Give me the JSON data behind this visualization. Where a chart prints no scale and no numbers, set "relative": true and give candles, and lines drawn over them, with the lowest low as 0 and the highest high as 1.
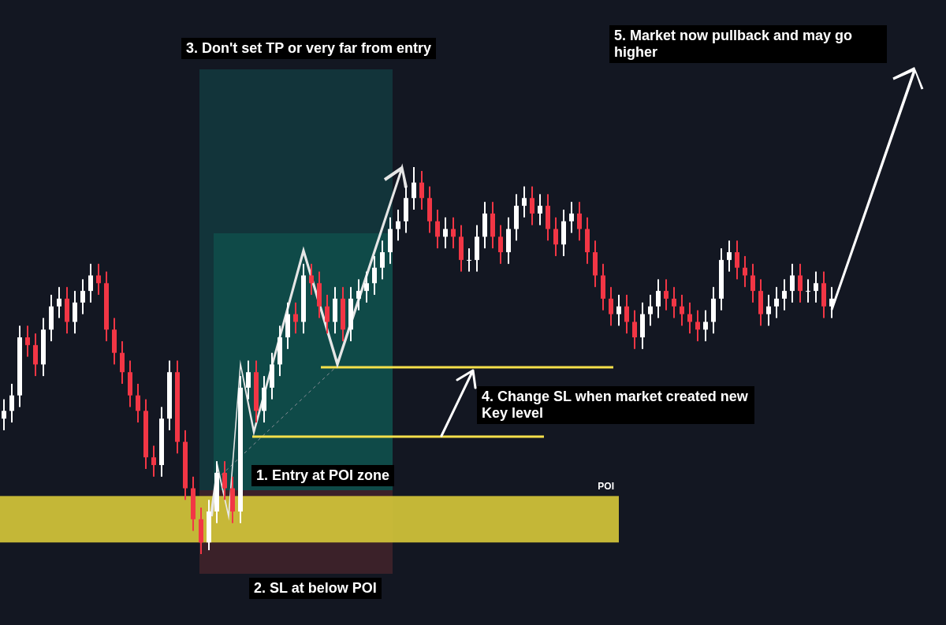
{
  "chart_data": {
    "type": "candlestick",
    "relative": true,
    "categories": [
      null,
      null,
      null,
      null,
      null,
      null,
      null,
      null,
      null,
      null,
      null,
      null,
      null,
      null,
      null,
      null,
      null,
      null,
      null,
      null,
      null,
      null,
      null,
      null,
      null,
      null,
      null,
      null,
      null,
      null,
      null,
      null,
      null,
      null,
      null,
      null,
      null,
      null,
      null,
      null,
      null,
      null,
      null,
      null,
      null,
      null,
      null,
      null,
      null,
      null,
      null,
      null,
      null,
      null,
      null,
      null,
      null,
      null,
      null,
      null,
      null,
      null,
      null,
      null,
      null,
      null,
      null,
      null,
      null,
      null,
      null,
      null,
      null,
      null,
      null,
      null,
      null,
      null,
      null,
      null,
      null,
      null,
      null,
      null,
      null,
      null,
      null,
      null,
      null,
      null,
      null,
      null,
      null,
      null,
      null,
      null,
      null,
      null,
      null,
      null,
      null,
      null,
      null,
      null,
      null,
      null
    ],
    "ohlc": [
      [
        0.35,
        0.4,
        0.32,
        0.37
      ],
      [
        0.37,
        0.44,
        0.34,
        0.41
      ],
      [
        0.41,
        0.59,
        0.38,
        0.56
      ],
      [
        0.56,
        0.59,
        0.51,
        0.54
      ],
      [
        0.54,
        0.57,
        0.46,
        0.49
      ],
      [
        0.49,
        0.61,
        0.46,
        0.58
      ],
      [
        0.58,
        0.67,
        0.55,
        0.64
      ],
      [
        0.64,
        0.69,
        0.61,
        0.66
      ],
      [
        0.66,
        0.69,
        0.57,
        0.6
      ],
      [
        0.6,
        0.68,
        0.57,
        0.65
      ],
      [
        0.65,
        0.71,
        0.62,
        0.68
      ],
      [
        0.68,
        0.75,
        0.65,
        0.72
      ],
      [
        0.72,
        0.75,
        0.67,
        0.7
      ],
      [
        0.7,
        0.73,
        0.55,
        0.58
      ],
      [
        0.58,
        0.61,
        0.49,
        0.52
      ],
      [
        0.52,
        0.55,
        0.44,
        0.47
      ],
      [
        0.47,
        0.5,
        0.38,
        0.41
      ],
      [
        0.41,
        0.44,
        0.34,
        0.37
      ],
      [
        0.37,
        0.4,
        0.22,
        0.25
      ],
      [
        0.25,
        0.28,
        0.2,
        0.23
      ],
      [
        0.23,
        0.38,
        0.2,
        0.35
      ],
      [
        0.35,
        0.5,
        0.32,
        0.47
      ],
      [
        0.47,
        0.5,
        0.26,
        0.29
      ],
      [
        0.29,
        0.32,
        0.14,
        0.17
      ],
      [
        0.17,
        0.2,
        0.06,
        0.09
      ],
      [
        0.09,
        0.12,
        0,
        0.03
      ],
      [
        0.03,
        0.14,
        0.01,
        0.11
      ],
      [
        0.11,
        0.24,
        0.08,
        0.21
      ],
      [
        0.21,
        0.24,
        0.14,
        0.17
      ],
      [
        0.17,
        0.2,
        0.08,
        0.11
      ],
      [
        0.11,
        0.46,
        0.08,
        0.43
      ],
      [
        0.43,
        0.5,
        0.4,
        0.47
      ],
      [
        0.47,
        0.5,
        0.34,
        0.37
      ],
      [
        0.37,
        0.46,
        0.34,
        0.43
      ],
      [
        0.43,
        0.52,
        0.4,
        0.49
      ],
      [
        0.49,
        0.59,
        0.46,
        0.56
      ],
      [
        0.56,
        0.65,
        0.53,
        0.62
      ],
      [
        0.62,
        0.65,
        0.57,
        0.6
      ],
      [
        0.6,
        0.75,
        0.57,
        0.72
      ],
      [
        0.72,
        0.75,
        0.67,
        0.7
      ],
      [
        0.7,
        0.73,
        0.61,
        0.64
      ],
      [
        0.64,
        0.67,
        0.57,
        0.6
      ],
      [
        0.6,
        0.69,
        0.57,
        0.66
      ],
      [
        0.66,
        0.69,
        0.55,
        0.58
      ],
      [
        0.58,
        0.69,
        0.55,
        0.66
      ],
      [
        0.66,
        0.71,
        0.63,
        0.68
      ],
      [
        0.68,
        0.73,
        0.65,
        0.7
      ],
      [
        0.7,
        0.77,
        0.67,
        0.74
      ],
      [
        0.74,
        0.81,
        0.71,
        0.78
      ],
      [
        0.78,
        0.87,
        0.75,
        0.84
      ],
      [
        0.84,
        0.89,
        0.81,
        0.86
      ],
      [
        0.86,
        0.95,
        0.83,
        0.92
      ],
      [
        0.92,
        1,
        0.89,
        0.96
      ],
      [
        0.96,
        0.99,
        0.89,
        0.92
      ],
      [
        0.92,
        0.95,
        0.83,
        0.86
      ],
      [
        0.86,
        0.89,
        0.79,
        0.82
      ],
      [
        0.82,
        0.87,
        0.79,
        0.84
      ],
      [
        0.84,
        0.87,
        0.79,
        0.82
      ],
      [
        0.82,
        0.85,
        0.73,
        0.76
      ],
      [
        0.76,
        0.79,
        0.73,
        0.76
      ],
      [
        0.76,
        0.85,
        0.73,
        0.82
      ],
      [
        0.82,
        0.91,
        0.79,
        0.88
      ],
      [
        0.88,
        0.91,
        0.79,
        0.82
      ],
      [
        0.82,
        0.85,
        0.75,
        0.78
      ],
      [
        0.78,
        0.87,
        0.75,
        0.84
      ],
      [
        0.84,
        0.93,
        0.81,
        0.9
      ],
      [
        0.9,
        0.95,
        0.87,
        0.92
      ],
      [
        0.92,
        0.95,
        0.85,
        0.88
      ],
      [
        0.88,
        0.93,
        0.85,
        0.9
      ],
      [
        0.9,
        0.93,
        0.81,
        0.84
      ],
      [
        0.84,
        0.87,
        0.77,
        0.8
      ],
      [
        0.8,
        0.89,
        0.77,
        0.86
      ],
      [
        0.86,
        0.91,
        0.83,
        0.88
      ],
      [
        0.88,
        0.91,
        0.81,
        0.84
      ],
      [
        0.84,
        0.87,
        0.75,
        0.78
      ],
      [
        0.78,
        0.81,
        0.69,
        0.72
      ],
      [
        0.72,
        0.75,
        0.63,
        0.66
      ],
      [
        0.66,
        0.69,
        0.59,
        0.62
      ],
      [
        0.62,
        0.67,
        0.59,
        0.64
      ],
      [
        0.64,
        0.67,
        0.57,
        0.6
      ],
      [
        0.6,
        0.63,
        0.53,
        0.56
      ],
      [
        0.56,
        0.65,
        0.53,
        0.62
      ],
      [
        0.62,
        0.67,
        0.59,
        0.64
      ],
      [
        0.64,
        0.71,
        0.61,
        0.68
      ],
      [
        0.68,
        0.71,
        0.63,
        0.66
      ],
      [
        0.66,
        0.69,
        0.61,
        0.64
      ],
      [
        0.64,
        0.67,
        0.59,
        0.62
      ],
      [
        0.62,
        0.65,
        0.57,
        0.6
      ],
      [
        0.6,
        0.63,
        0.55,
        0.58
      ],
      [
        0.58,
        0.63,
        0.55,
        0.6
      ],
      [
        0.6,
        0.69,
        0.57,
        0.66
      ],
      [
        0.66,
        0.79,
        0.63,
        0.76
      ],
      [
        0.76,
        0.81,
        0.73,
        0.78
      ],
      [
        0.78,
        0.81,
        0.71,
        0.74
      ],
      [
        0.74,
        0.77,
        0.69,
        0.72
      ],
      [
        0.72,
        0.75,
        0.65,
        0.68
      ],
      [
        0.68,
        0.71,
        0.59,
        0.62
      ],
      [
        0.62,
        0.67,
        0.59,
        0.64
      ],
      [
        0.64,
        0.69,
        0.61,
        0.66
      ],
      [
        0.66,
        0.71,
        0.63,
        0.68
      ],
      [
        0.68,
        0.75,
        0.65,
        0.72
      ],
      [
        0.72,
        0.75,
        0.65,
        0.68
      ],
      [
        0.68,
        0.71,
        0.65,
        0.68
      ],
      [
        0.68,
        0.73,
        0.65,
        0.7
      ],
      [
        0.7,
        0.73,
        0.61,
        0.64
      ],
      [
        0.64,
        0.69,
        0.61,
        0.66
      ]
    ],
    "colors": [
      "#ffffff",
      "#ffffff",
      "#ffffff",
      "#f23645",
      "#f23645",
      "#ffffff",
      "#ffffff",
      "#ffffff",
      "#f23645",
      "#ffffff",
      "#ffffff",
      "#ffffff",
      "#f23645",
      "#f23645",
      "#f23645",
      "#f23645",
      "#f23645",
      "#f23645",
      "#f23645",
      "#f23645",
      "#ffffff",
      "#ffffff",
      "#f23645",
      "#f23645",
      "#f23645",
      "#f23645",
      "#ffffff",
      "#ffffff",
      "#f23645",
      "#f23645",
      "#ffffff",
      "#ffffff",
      "#f23645",
      "#ffffff",
      "#ffffff",
      "#ffffff",
      "#ffffff",
      "#f23645",
      "#ffffff",
      "#f23645",
      "#f23645",
      "#f23645",
      "#ffffff",
      "#f23645",
      "#ffffff",
      "#ffffff",
      "#ffffff",
      "#ffffff",
      "#ffffff",
      "#ffffff",
      "#ffffff",
      "#ffffff",
      "#ffffff",
      "#f23645",
      "#f23645",
      "#f23645",
      "#ffffff",
      "#f23645",
      "#f23645",
      "#ffffff",
      "#ffffff",
      "#ffffff",
      "#f23645",
      "#f23645",
      "#ffffff",
      "#ffffff",
      "#ffffff",
      "#f23645",
      "#ffffff",
      "#f23645",
      "#f23645",
      "#ffffff",
      "#ffffff",
      "#f23645",
      "#f23645",
      "#f23645",
      "#f23645",
      "#f23645",
      "#ffffff",
      "#f23645",
      "#f23645",
      "#ffffff",
      "#ffffff",
      "#ffffff",
      "#f23645",
      "#f23645",
      "#f23645",
      "#f23645",
      "#f23645",
      "#ffffff",
      "#ffffff",
      "#ffffff",
      "#ffffff",
      "#f23645",
      "#f23645",
      "#f23645",
      "#f23645",
      "#ffffff",
      "#ffffff",
      "#ffffff",
      "#ffffff",
      "#f23645",
      "#ffffff",
      "#ffffff",
      "#f23645",
      "#ffffff"
    ],
    "bands": [
      {
        "axis": "y",
        "from": 0.03,
        "to": 0.15,
        "label": "POI",
        "color": "#d4c53a"
      }
    ],
    "annotations": [
      "3. Don't set TP or very far from entry",
      "5. Market now pullback and may go higher",
      "4. Change SL when market created new Key level",
      "1. Entry at POI zone",
      "2. SL at below POI"
    ]
  }
}
